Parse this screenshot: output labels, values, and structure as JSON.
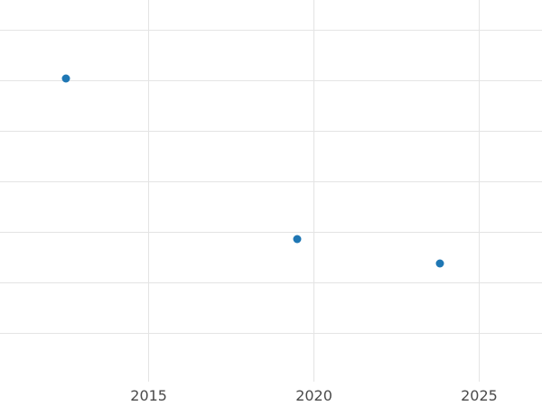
{
  "chart_data": {
    "type": "scatter",
    "title": "",
    "xlabel": "",
    "ylabel": "",
    "x_tick_values": [
      2015,
      2020,
      2025
    ],
    "x_tick_labels": [
      "2015",
      "2020",
      "2025"
    ],
    "points": [
      {
        "x": 2012.5,
        "y": 6.05
      },
      {
        "x": 2019.5,
        "y": 2.86
      },
      {
        "x": 2023.8,
        "y": 2.39
      }
    ],
    "y_gridline_values": [
      1,
      2,
      3,
      4,
      5,
      6,
      7
    ],
    "y_axis_note": "y-axis tick labels not visible in frame (cropped); y values expressed in gridline units, lowest visible gridline = 1",
    "xlim": [
      2010.5,
      2026.9
    ],
    "ylim": [
      0.04,
      7.6
    ],
    "grid": true,
    "legend": "none",
    "colors": {
      "point": "#1f77b4",
      "gridline": "#e4e4e4",
      "tick_label": "#4a4a4a",
      "background": "#ffffff"
    }
  }
}
